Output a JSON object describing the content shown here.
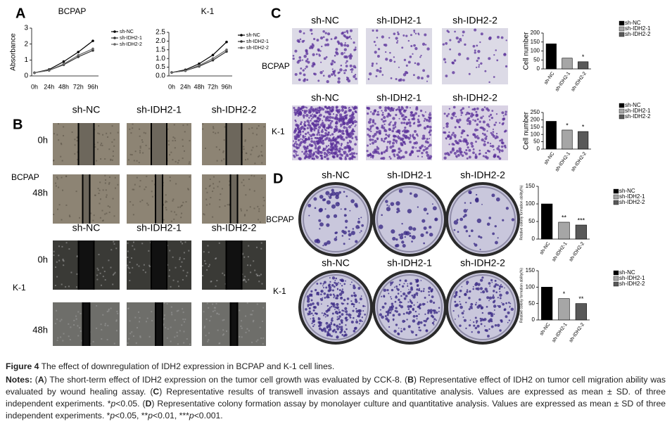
{
  "chart_data": [
    {
      "type": "line",
      "title": "BCPAP",
      "ylabel": "Absorbance",
      "categories": [
        "0h",
        "24h",
        "48h",
        "72h",
        "96h"
      ],
      "series": [
        {
          "name": "sh-NC",
          "color": "#000000",
          "values": [
            0.2,
            0.4,
            0.9,
            1.5,
            2.2
          ]
        },
        {
          "name": "sh-IDH2-1",
          "color": "#333333",
          "values": [
            0.2,
            0.35,
            0.7,
            1.2,
            1.6
          ]
        },
        {
          "name": "sh-IDH2-2",
          "color": "#666666",
          "values": [
            0.2,
            0.35,
            0.75,
            1.3,
            1.7
          ]
        }
      ],
      "ylim": [
        0,
        3
      ],
      "yticks": [
        0,
        1,
        2,
        3
      ]
    },
    {
      "type": "line",
      "title": "K-1",
      "categories": [
        "0h",
        "24h",
        "48h",
        "72h",
        "96h"
      ],
      "series": [
        {
          "name": "sh-NC",
          "color": "#000000",
          "values": [
            0.2,
            0.35,
            0.7,
            1.2,
            1.95
          ]
        },
        {
          "name": "sh-IDH2-1",
          "color": "#333333",
          "values": [
            0.2,
            0.3,
            0.55,
            0.9,
            1.4
          ]
        },
        {
          "name": "sh-IDH2-2",
          "color": "#666666",
          "values": [
            0.2,
            0.3,
            0.6,
            1.0,
            1.5
          ]
        }
      ],
      "ylim": [
        0,
        2.5
      ],
      "yticks": [
        {
          "value": 0,
          "label": "0.0"
        },
        {
          "value": 0.5,
          "label": "0.5"
        },
        {
          "value": 1,
          "label": "1.0"
        },
        {
          "value": 1.5,
          "label": "1.5"
        },
        {
          "value": 2,
          "label": "2.0"
        },
        {
          "value": 2.5,
          "label": "2.5"
        }
      ]
    },
    {
      "type": "bar",
      "ylabel": "Cell number",
      "categories": [
        "sh-NC",
        "sh-IDH2-1",
        "sh-IDH2-2"
      ],
      "colors": [
        "#000000",
        "#a6a6a6",
        "#595959"
      ],
      "values": [
        140,
        60,
        40
      ],
      "significance": [
        null,
        null,
        "*"
      ],
      "ylim": [
        0,
        200
      ],
      "yticks": [
        0,
        50,
        100,
        150,
        200
      ]
    },
    {
      "type": "bar",
      "ylabel": "Cell number",
      "categories": [
        "sh-NC",
        "sh-IDH2-1",
        "sh-IDH2-2"
      ],
      "colors": [
        "#000000",
        "#a6a6a6",
        "#595959"
      ],
      "values": [
        190,
        130,
        120
      ],
      "significance": [
        null,
        "*",
        "*"
      ],
      "ylim": [
        0,
        250
      ],
      "yticks": [
        0,
        50,
        100,
        150,
        200,
        250
      ]
    },
    {
      "type": "bar",
      "ylabel": "Relative colony formation ability(%)",
      "categories": [
        "sh-NC",
        "sh-IDH2-1",
        "sh-IDH2-2"
      ],
      "colors": [
        "#000000",
        "#a6a6a6",
        "#595959"
      ],
      "values": [
        100,
        48,
        40
      ],
      "significance": [
        null,
        "**",
        "***"
      ],
      "ylim": [
        0,
        150
      ],
      "yticks": [
        0,
        50,
        100,
        150
      ]
    },
    {
      "type": "bar",
      "ylabel": "Relative colony formation ability(%)",
      "categories": [
        "sh-NC",
        "sh-IDH2-1",
        "sh-IDH2-2"
      ],
      "colors": [
        "#000000",
        "#a6a6a6",
        "#595959"
      ],
      "values": [
        100,
        65,
        50
      ],
      "significance": [
        null,
        "*",
        "**"
      ],
      "ylim": [
        0,
        150
      ],
      "yticks": [
        0,
        50,
        100,
        150
      ]
    }
  ],
  "panels": {
    "A": "A",
    "B": {
      "letter": "B",
      "headers": [
        "sh-NC",
        "sh-IDH2-1",
        "sh-IDH2-2"
      ],
      "times": [
        "0h",
        "48h"
      ],
      "cell_lines": [
        "BCPAP",
        "K-1"
      ]
    },
    "C": {
      "letter": "C",
      "headers": [
        "sh-NC",
        "sh-IDH2-1",
        "sh-IDH2-2"
      ],
      "cell_lines": [
        "BCPAP",
        "K-1"
      ]
    },
    "D": {
      "letter": "D",
      "headers": [
        "sh-NC",
        "sh-IDH2-1",
        "sh-IDH2-2"
      ],
      "cell_lines": [
        "BCPAP",
        "K-1"
      ]
    }
  },
  "caption": {
    "label": "Figure 4",
    "text": " The effect of downregulation of IDH2 expression in BCPAP and K-1 cell lines.",
    "notes": [
      "Notes:",
      " (",
      "A",
      ") The short-term effect of IDH2 expression on the tumor cell growth was evaluated by CCK-8. (",
      "B",
      ") Representative effect of IDH2 on tumor cell migration ability was evaluated by wound healing assay. (",
      "C",
      ") Representative results of transwell invasion assays and quantitative analysis. Values are expressed as mean ± SD. of three independent experiments. *",
      "p",
      "<0.05. (",
      "D",
      ") Representative colony formation assay by monolayer culture and quantitative analysis. Values are expressed as mean ± SD of three independent experiments. *",
      "p",
      "<0.05, **",
      "p",
      "<0.01, ***",
      "p",
      "<0.001."
    ]
  }
}
